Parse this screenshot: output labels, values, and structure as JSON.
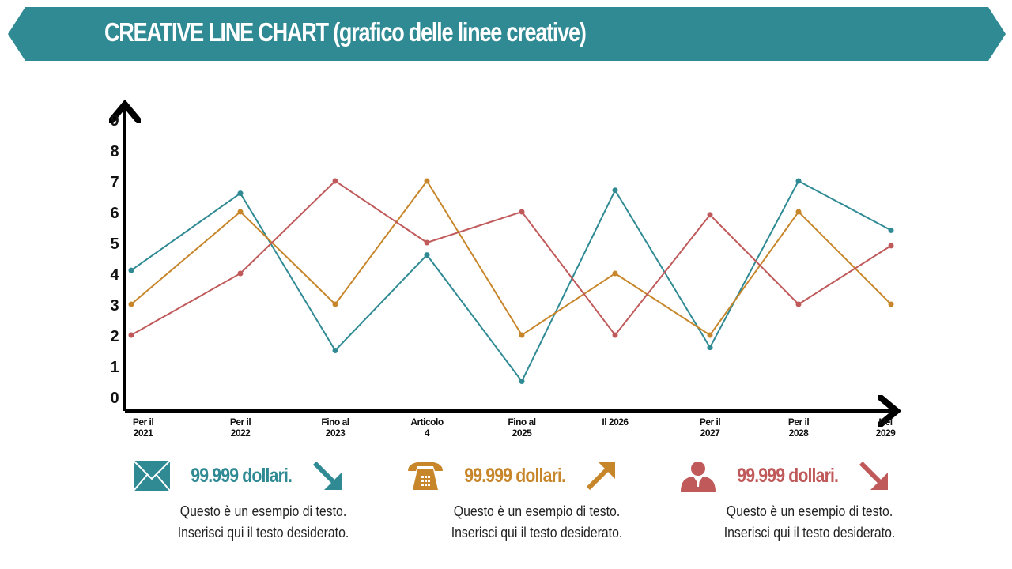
{
  "title": "CREATIVE LINE CHART (grafico delle linee creative)",
  "colors": {
    "teal": "#2f8a94",
    "orange": "#c8862b",
    "red": "#c0595a"
  },
  "chart_data": {
    "type": "line",
    "title": "CREATIVE LINE CHART (grafico delle linee creative)",
    "categories": [
      [
        "Per il",
        "2021"
      ],
      [
        "Per il",
        "2022"
      ],
      [
        "Fino al",
        "2023"
      ],
      [
        "Articolo",
        "4"
      ],
      [
        "Fino al",
        "2025"
      ],
      [
        "Il 2026",
        ""
      ],
      [
        "Per il",
        "2027"
      ],
      [
        "Per il",
        "2028"
      ],
      [
        "Nel",
        "2029"
      ]
    ],
    "yticks": [
      "0",
      "1",
      "2",
      "3",
      "4",
      "5",
      "6",
      "7",
      "8",
      "9"
    ],
    "ylim": [
      0,
      9
    ],
    "series": [
      {
        "name": "teal",
        "color": "#2f8a94",
        "values": [
          4.1,
          6.6,
          1.5,
          4.6,
          0.5,
          6.7,
          1.6,
          7,
          5.4
        ]
      },
      {
        "name": "orange",
        "color": "#c8862b",
        "values": [
          3,
          6,
          3,
          7,
          2,
          4,
          2,
          6,
          3
        ]
      },
      {
        "name": "red",
        "color": "#c0595a",
        "values": [
          2,
          4,
          7,
          5,
          6,
          2,
          5.9,
          3,
          4.9
        ]
      }
    ]
  },
  "cards": [
    {
      "icon": "envelope-icon",
      "amount": "99.999 dollari.",
      "trend": "down",
      "color": "#2f8a94",
      "line1": "Questo è un esempio di testo.",
      "line2": "Inserisci qui il testo desiderato."
    },
    {
      "icon": "telephone-icon",
      "amount": "99.999 dollari.",
      "trend": "up",
      "color": "#c8862b",
      "line1": "Questo è un esempio di testo.",
      "line2": "Inserisci qui il testo desiderato."
    },
    {
      "icon": "person-icon",
      "amount": "99.999 dollari.",
      "trend": "down",
      "color": "#c0595a",
      "line1": "Questo è un esempio di testo.",
      "line2": "Inserisci qui il testo desiderato."
    }
  ]
}
